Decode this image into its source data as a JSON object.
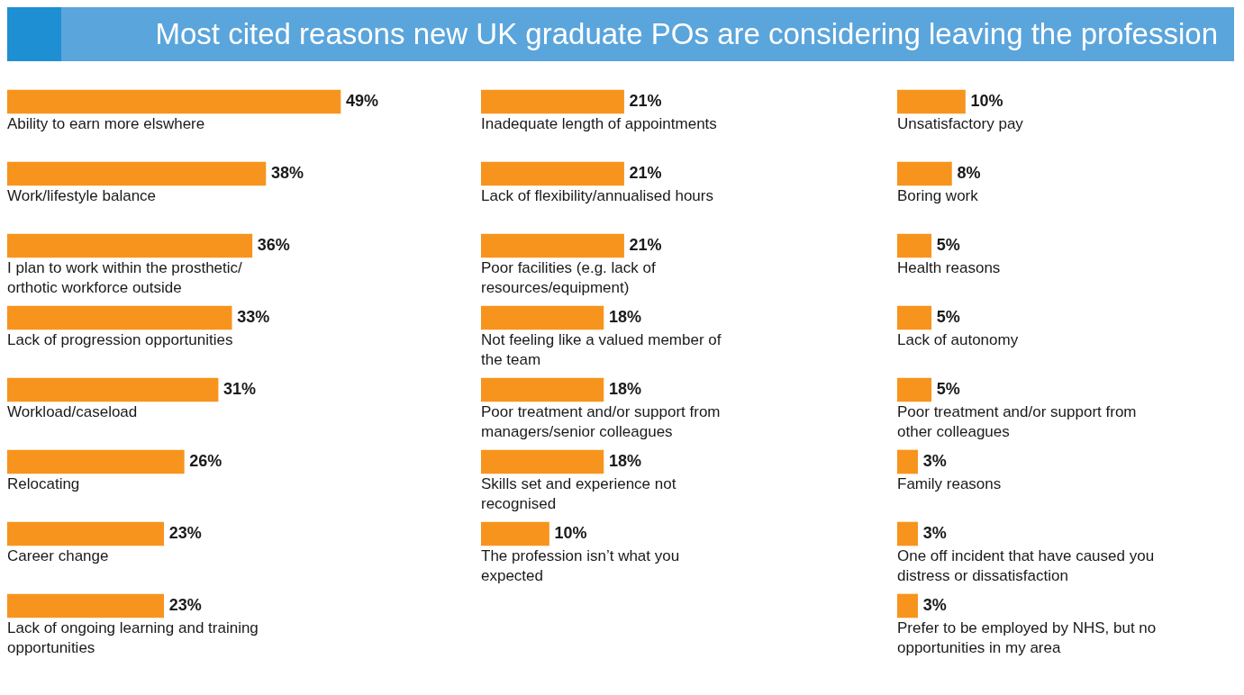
{
  "chart_data": [
    {
      "type": "bar",
      "title": "Most cited reasons new UK graduate POs are considering leaving the profession",
      "orientation": "horizontal",
      "categories": [
        "Ability to earn more elswhere",
        "Work/lifestyle balance",
        "I plan to work within the prosthetic/ orthotic workforce outside",
        "Lack of progression opportunities",
        "Workload/caseload",
        "Relocating",
        "Career change",
        "Lack of ongoing learning and training opportunities"
      ],
      "values": [
        49,
        38,
        36,
        33,
        31,
        26,
        23,
        23
      ],
      "value_labels": [
        "49%",
        "38%",
        "36%",
        "33%",
        "31%",
        "26%",
        "23%",
        "23%"
      ],
      "color": "#f7941d",
      "tick_labels": "y"
    },
    {
      "type": "bar",
      "orientation": "horizontal",
      "categories": [
        "Inadequate length of appointments",
        "Lack of flexibility/annualised hours",
        "Poor facilities (e.g. lack of resources/equipment)",
        "Not feeling like a valued member of the team",
        "Poor treatment and/or support from managers/senior colleagues",
        "Skills set and experience not recognised",
        "The profession isn’t what you expected"
      ],
      "values": [
        21,
        21,
        21,
        18,
        18,
        18,
        10
      ],
      "value_labels": [
        "21%",
        "21%",
        "21%",
        "18%",
        "18%",
        "18%",
        "10%"
      ],
      "color": "#f7941d",
      "tick_labels": "y"
    },
    {
      "type": "bar",
      "orientation": "horizontal",
      "categories": [
        "Unsatisfactory pay",
        "Boring work",
        "Health reasons",
        "Lack of autonomy",
        "Poor treatment and/or support from other colleagues",
        "Family reasons",
        "One off incident that have caused you distress or dissatisfaction",
        "Prefer to be employed by NHS, but no opportunities in my area"
      ],
      "values": [
        10,
        8,
        5,
        5,
        5,
        3,
        3,
        3
      ],
      "value_labels": [
        "10%",
        "8%",
        "5%",
        "5%",
        "5%",
        "3%",
        "3%",
        "3%"
      ],
      "color": "#f7941d",
      "tick_labels": "y"
    }
  ]
}
